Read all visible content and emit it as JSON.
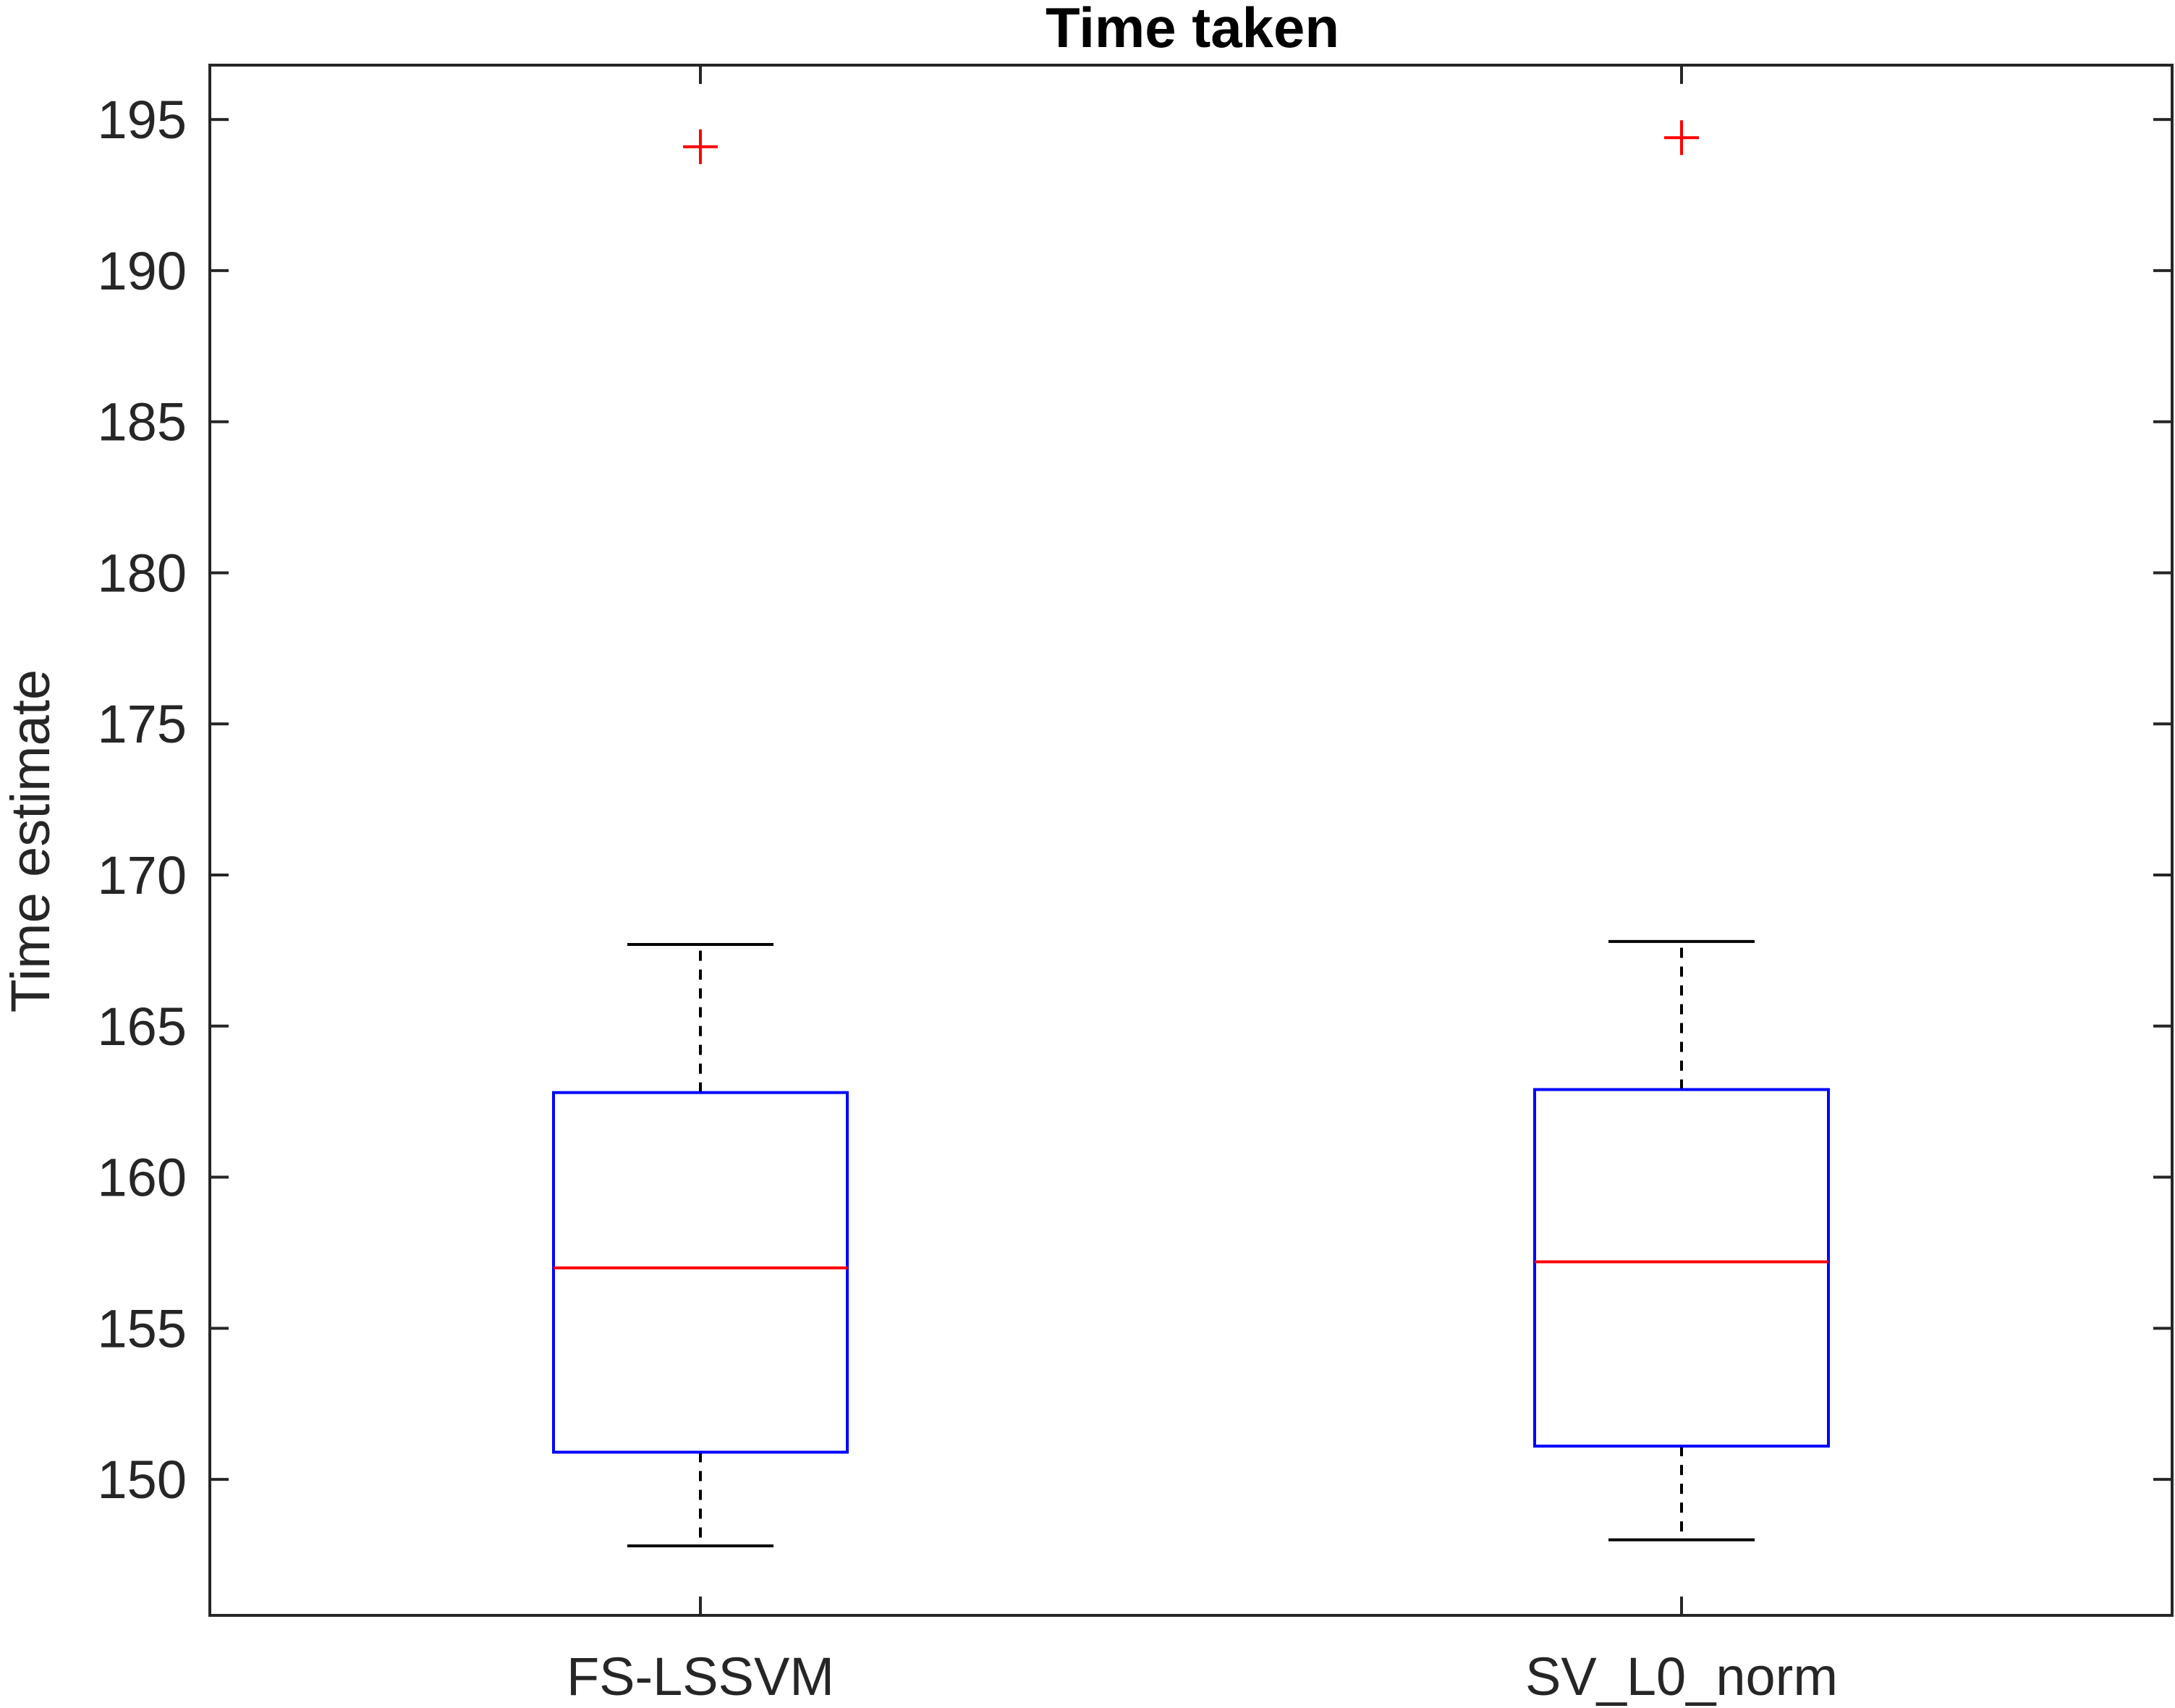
{
  "chart_data": {
    "type": "box",
    "title": "Time taken",
    "xlabel": "",
    "ylabel": "Time estimate",
    "categories": [
      "FS-LSSVM",
      "SV_L0_norm"
    ],
    "boxes": [
      {
        "category": "FS-LSSVM",
        "whisker_low": 147.8,
        "q1": 150.9,
        "median": 157.0,
        "q3": 162.8,
        "whisker_high": 167.7,
        "outliers": [
          194.1
        ]
      },
      {
        "category": "SV_L0_norm",
        "whisker_low": 148.0,
        "q1": 151.1,
        "median": 157.2,
        "q3": 162.9,
        "whisker_high": 167.8,
        "outliers": [
          194.4
        ]
      }
    ],
    "ylim": [
      145.5,
      196.8
    ],
    "yticks": [
      150,
      155,
      160,
      165,
      170,
      175,
      180,
      185,
      190,
      195
    ],
    "ytick_labels": [
      "150",
      "155",
      "160",
      "165",
      "170",
      "175",
      "180",
      "185",
      "190",
      "195"
    ],
    "grid": false,
    "colors": {
      "box": "#0000ff",
      "median": "#ff0000",
      "outlier": "#ff0000",
      "whisker": "#000000",
      "axis": "#262626"
    }
  }
}
